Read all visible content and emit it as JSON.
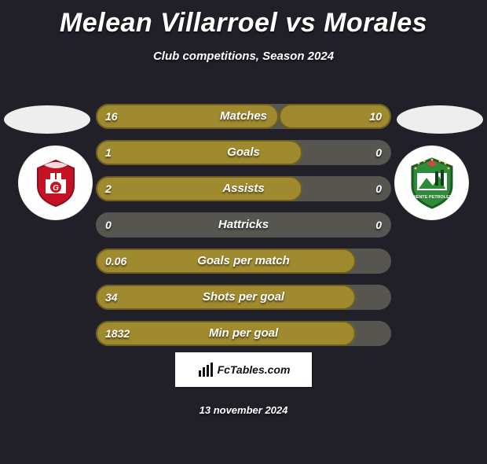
{
  "title": "Melean Villarroel vs Morales",
  "subtitle": "Club competitions, Season 2024",
  "brand": "FcTables.com",
  "date": "13 november 2024",
  "colors": {
    "bar_fill": "#a08a2f",
    "bar_border": "#6f601f",
    "track": "#575550",
    "background": "#212029"
  },
  "stats": [
    {
      "label": "Matches",
      "left_val": "16",
      "right_val": "10",
      "left_pct": 62,
      "right_pct": 38
    },
    {
      "label": "Goals",
      "left_val": "1",
      "right_val": "0",
      "left_pct": 70,
      "right_pct": 0
    },
    {
      "label": "Assists",
      "left_val": "2",
      "right_val": "0",
      "left_pct": 70,
      "right_pct": 0
    },
    {
      "label": "Hattricks",
      "left_val": "0",
      "right_val": "0",
      "left_pct": 0,
      "right_pct": 0
    },
    {
      "label": "Goals per match",
      "left_val": "0.06",
      "right_val": "",
      "left_pct": 88,
      "right_pct": 0
    },
    {
      "label": "Shots per goal",
      "left_val": "34",
      "right_val": "",
      "left_pct": 88,
      "right_pct": 0
    },
    {
      "label": "Min per goal",
      "left_val": "1832",
      "right_val": "",
      "left_pct": 88,
      "right_pct": 0
    }
  ]
}
